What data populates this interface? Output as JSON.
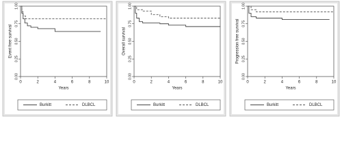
{
  "chart_data": [
    {
      "type": "step",
      "ylabel": "Event free survival",
      "xlabel": "Years",
      "xlim": [
        0,
        10
      ],
      "xticks": [
        0,
        2,
        4,
        6,
        8,
        10
      ],
      "ylim": [
        0,
        1
      ],
      "yticks": [
        {
          "value": 0,
          "label": "0.00"
        },
        {
          "value": 0.25,
          "label": "0.25"
        },
        {
          "value": 0.5,
          "label": "0.50"
        },
        {
          "value": 0.75,
          "label": "0.75"
        },
        {
          "value": 1,
          "label": "1.00"
        }
      ],
      "series": [
        {
          "name": "Burkitt",
          "color": "#444444",
          "dash": false,
          "x": [
            0,
            0.15,
            0.3,
            0.5,
            0.8,
            1.2,
            2,
            4,
            9.3
          ],
          "values": [
            1,
            0.9,
            0.82,
            0.76,
            0.72,
            0.7,
            0.68,
            0.64,
            0.64
          ]
        },
        {
          "name": "DLBCL",
          "color": "#555555",
          "dash": true,
          "x": [
            0,
            0.15,
            0.3,
            0.6,
            10
          ],
          "values": [
            1,
            0.92,
            0.86,
            0.82,
            0.82
          ]
        }
      ]
    },
    {
      "type": "step",
      "ylabel": "Overall survival",
      "xlabel": "Years",
      "xlim": [
        0,
        10
      ],
      "xticks": [
        0,
        2,
        4,
        6,
        8,
        10
      ],
      "ylim": [
        0,
        1
      ],
      "yticks": [
        {
          "value": 0,
          "label": "0.00"
        },
        {
          "value": 0.25,
          "label": "0.25"
        },
        {
          "value": 0.5,
          "label": "0.50"
        },
        {
          "value": 0.75,
          "label": "0.75"
        },
        {
          "value": 1,
          "label": "1.00"
        }
      ],
      "series": [
        {
          "name": "Burkitt",
          "color": "#444444",
          "dash": false,
          "x": [
            0,
            0.15,
            0.3,
            0.6,
            1,
            3,
            4,
            6,
            10
          ],
          "values": [
            1,
            0.9,
            0.83,
            0.78,
            0.76,
            0.75,
            0.73,
            0.71,
            0.71
          ]
        },
        {
          "name": "DLBCL",
          "color": "#555555",
          "dash": true,
          "x": [
            0,
            0.3,
            1,
            2,
            3,
            4,
            10
          ],
          "values": [
            1,
            0.95,
            0.93,
            0.88,
            0.85,
            0.83,
            0.83
          ]
        }
      ]
    },
    {
      "type": "step",
      "ylabel": "Progression free survival",
      "xlabel": "Years",
      "xlim": [
        0,
        10
      ],
      "xticks": [
        0,
        2,
        4,
        6,
        8,
        10
      ],
      "ylim": [
        0,
        1
      ],
      "yticks": [
        {
          "value": 0,
          "label": "0.00"
        },
        {
          "value": 0.25,
          "label": "0.25"
        },
        {
          "value": 0.5,
          "label": "0.50"
        },
        {
          "value": 0.75,
          "label": "0.75"
        },
        {
          "value": 1,
          "label": "1.00"
        }
      ],
      "series": [
        {
          "name": "Burkitt",
          "color": "#444444",
          "dash": false,
          "x": [
            0,
            0.15,
            0.4,
            1,
            4,
            9.5
          ],
          "values": [
            1,
            0.9,
            0.85,
            0.83,
            0.81,
            0.81
          ]
        },
        {
          "name": "DLBCL",
          "color": "#555555",
          "dash": true,
          "x": [
            0,
            0.4,
            1,
            10
          ],
          "values": [
            1,
            0.95,
            0.92,
            0.92
          ]
        }
      ]
    }
  ]
}
